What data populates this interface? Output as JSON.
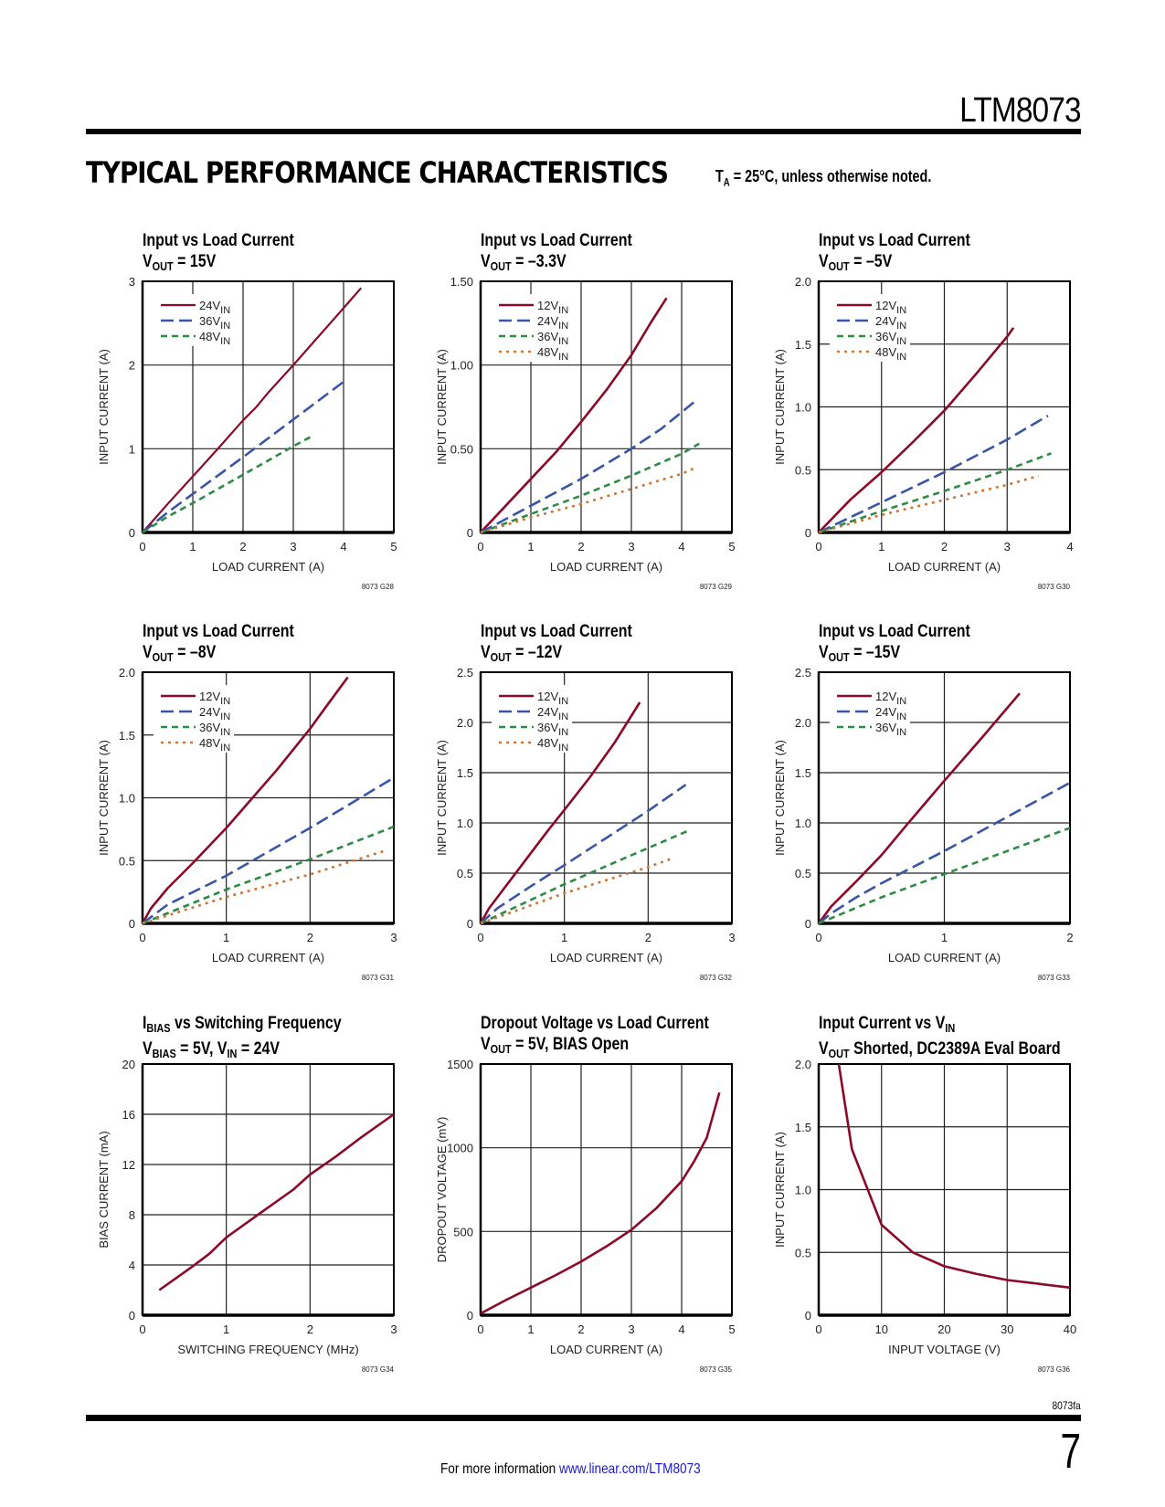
{
  "header": {
    "part_number": "LTM8073",
    "section_title": "TYPICAL PERFORMANCE CHARACTERISTICS",
    "conditions_prefix": "T",
    "conditions_sub": "A",
    "conditions_suffix": " = 25°C, unless otherwise noted."
  },
  "footer": {
    "doc_code": "8073fa",
    "page_number": "7",
    "more_info_label": "For more information ",
    "more_info_link": "www.linear.com/LTM8073"
  },
  "colors": {
    "red": "#8b0a2a",
    "blue": "#3a55a4",
    "green": "#2e8b46",
    "orange": "#c8783a"
  },
  "chart_data": [
    {
      "id": "G28",
      "type": "line",
      "title_line1": [
        {
          "t": "Input vs Load Current"
        }
      ],
      "title_line2": [
        {
          "t": "V"
        },
        {
          "s": "OUT"
        },
        {
          "t": " = 15V"
        }
      ],
      "xlabel": "LOAD CURRENT (A)",
      "ylabel": "INPUT CURRENT (A)",
      "xlim": [
        0,
        5
      ],
      "ylim": [
        0,
        3
      ],
      "xticks": [
        0,
        1,
        2,
        3,
        4,
        5
      ],
      "xtick_labels": [
        "0",
        "1",
        "2",
        "3",
        "4",
        "5"
      ],
      "yticks": [
        0,
        1,
        2,
        3
      ],
      "ytick_labels": [
        "0",
        "1",
        "2",
        "3"
      ],
      "code": "8073 G28",
      "legend": "top-left",
      "series": [
        {
          "name": "24V",
          "sub": "IN",
          "style": "solid-thin",
          "color": "red",
          "x": [
            0,
            0.5,
            1,
            1.5,
            2,
            2.25,
            2.5,
            3,
            3.5,
            4,
            4.35
          ],
          "y": [
            0,
            0.34,
            0.67,
            1.0,
            1.34,
            1.49,
            1.67,
            2.0,
            2.34,
            2.68,
            2.92
          ]
        },
        {
          "name": "36V",
          "sub": "IN",
          "style": "longdash",
          "color": "blue",
          "x": [
            0,
            0.5,
            1,
            2,
            3,
            4
          ],
          "y": [
            0,
            0.24,
            0.46,
            0.9,
            1.35,
            1.8
          ]
        },
        {
          "name": "48V",
          "sub": "IN",
          "style": "dash",
          "color": "green",
          "x": [
            0,
            0.5,
            1,
            2,
            3,
            3.4
          ],
          "y": [
            0,
            0.19,
            0.35,
            0.69,
            1.03,
            1.16
          ]
        }
      ]
    },
    {
      "id": "G29",
      "type": "line",
      "title_line1": [
        {
          "t": "Input vs Load Current"
        }
      ],
      "title_line2": [
        {
          "t": "V"
        },
        {
          "s": "OUT"
        },
        {
          "t": " = –3.3V"
        }
      ],
      "xlabel": "LOAD CURRENT (A)",
      "ylabel": "INPUT CURRENT (A)",
      "xlim": [
        0,
        5
      ],
      "ylim": [
        0,
        1.5
      ],
      "xticks": [
        0,
        1,
        2,
        3,
        4,
        5
      ],
      "xtick_labels": [
        "0",
        "1",
        "2",
        "3",
        "4",
        "5"
      ],
      "yticks": [
        0,
        0.5,
        1.0,
        1.5
      ],
      "ytick_labels": [
        "0",
        "0.50",
        "1.00",
        "1.50"
      ],
      "code": "8073 G29",
      "legend": "top-left",
      "series": [
        {
          "name": "12V",
          "sub": "IN",
          "style": "solid",
          "color": "red",
          "x": [
            0,
            0.5,
            1,
            1.5,
            2,
            2.5,
            3,
            3.4,
            3.7
          ],
          "y": [
            0,
            0.16,
            0.32,
            0.48,
            0.66,
            0.85,
            1.06,
            1.26,
            1.4
          ]
        },
        {
          "name": "24V",
          "sub": "IN",
          "style": "longdash",
          "color": "blue",
          "x": [
            0,
            1,
            2,
            3,
            3.6,
            4.25
          ],
          "y": [
            0,
            0.16,
            0.32,
            0.5,
            0.62,
            0.78
          ]
        },
        {
          "name": "36V",
          "sub": "IN",
          "style": "dash",
          "color": "green",
          "x": [
            0,
            1,
            2,
            3,
            4,
            4.35
          ],
          "y": [
            0,
            0.11,
            0.22,
            0.34,
            0.47,
            0.53
          ]
        },
        {
          "name": "48V",
          "sub": "IN",
          "style": "dot",
          "color": "orange",
          "x": [
            0,
            1,
            2,
            3,
            4,
            4.3
          ],
          "y": [
            0,
            0.09,
            0.17,
            0.26,
            0.35,
            0.39
          ]
        }
      ]
    },
    {
      "id": "G30",
      "type": "line",
      "title_line1": [
        {
          "t": "Input vs Load Current"
        }
      ],
      "title_line2": [
        {
          "t": "V"
        },
        {
          "s": "OUT"
        },
        {
          "t": " = –5V"
        }
      ],
      "xlabel": "LOAD CURRENT (A)",
      "ylabel": "INPUT CURRENT (A)",
      "xlim": [
        0,
        4
      ],
      "ylim": [
        0,
        2.0
      ],
      "xticks": [
        0,
        1,
        2,
        3,
        4
      ],
      "xtick_labels": [
        "0",
        "1",
        "2",
        "3",
        "4"
      ],
      "yticks": [
        0,
        0.5,
        1.0,
        1.5,
        2.0
      ],
      "ytick_labels": [
        "0",
        "0.5",
        "1.0",
        "1.5",
        "2.0"
      ],
      "code": "8073 G30",
      "legend": "top-left",
      "series": [
        {
          "name": "12V",
          "sub": "IN",
          "style": "solid",
          "color": "red",
          "x": [
            0,
            0.5,
            1,
            1.5,
            2,
            2.5,
            3,
            3.1
          ],
          "y": [
            0,
            0.26,
            0.48,
            0.72,
            0.97,
            1.26,
            1.56,
            1.63
          ]
        },
        {
          "name": "24V",
          "sub": "IN",
          "style": "longdash",
          "color": "blue",
          "x": [
            0,
            1,
            2,
            3,
            3.65
          ],
          "y": [
            0,
            0.24,
            0.48,
            0.74,
            0.93
          ]
        },
        {
          "name": "36V",
          "sub": "IN",
          "style": "dash",
          "color": "green",
          "x": [
            0,
            1,
            2,
            3,
            3.7
          ],
          "y": [
            0,
            0.17,
            0.33,
            0.5,
            0.63
          ]
        },
        {
          "name": "48V",
          "sub": "IN",
          "style": "dot",
          "color": "orange",
          "x": [
            0,
            1,
            2,
            3,
            3.5
          ],
          "y": [
            0,
            0.14,
            0.26,
            0.38,
            0.45
          ]
        }
      ]
    },
    {
      "id": "G31",
      "type": "line",
      "title_line1": [
        {
          "t": "Input vs Load Current"
        }
      ],
      "title_line2": [
        {
          "t": "V"
        },
        {
          "s": "OUT"
        },
        {
          "t": " = –8V"
        }
      ],
      "xlabel": "LOAD CURRENT (A)",
      "ylabel": "INPUT CURRENT (A)",
      "xlim": [
        0,
        3
      ],
      "ylim": [
        0,
        2.0
      ],
      "xticks": [
        0,
        1,
        2,
        3
      ],
      "xtick_labels": [
        "0",
        "1",
        "2",
        "3"
      ],
      "yticks": [
        0,
        0.5,
        1.0,
        1.5,
        2.0
      ],
      "ytick_labels": [
        "0",
        "0.5",
        "1.0",
        "1.5",
        "2.0"
      ],
      "code": "8073 G31",
      "legend": "top-left",
      "series": [
        {
          "name": "12V",
          "sub": "IN",
          "style": "solid",
          "color": "red",
          "x": [
            0,
            0.1,
            0.3,
            0.6,
            1,
            1.3,
            1.6,
            2,
            2.25,
            2.45
          ],
          "y": [
            0,
            0.12,
            0.28,
            0.48,
            0.76,
            0.99,
            1.22,
            1.55,
            1.78,
            1.96
          ]
        },
        {
          "name": "24V",
          "sub": "IN",
          "style": "longdash",
          "color": "blue",
          "x": [
            0,
            0.3,
            1,
            1.5,
            2,
            2.5,
            3
          ],
          "y": [
            0,
            0.15,
            0.38,
            0.57,
            0.76,
            0.96,
            1.16
          ]
        },
        {
          "name": "36V",
          "sub": "IN",
          "style": "dash",
          "color": "green",
          "x": [
            0,
            1,
            2,
            3
          ],
          "y": [
            0,
            0.27,
            0.51,
            0.77
          ]
        },
        {
          "name": "48V",
          "sub": "IN",
          "style": "dot",
          "color": "orange",
          "x": [
            0,
            1,
            2,
            2.9
          ],
          "y": [
            0,
            0.21,
            0.39,
            0.58
          ]
        }
      ]
    },
    {
      "id": "G32",
      "type": "line",
      "title_line1": [
        {
          "t": "Input vs Load Current"
        }
      ],
      "title_line2": [
        {
          "t": "V"
        },
        {
          "s": "OUT"
        },
        {
          "t": " = –12V"
        }
      ],
      "xlabel": "LOAD CURRENT (A)",
      "ylabel": "INPUT CURRENT (A)",
      "xlim": [
        0,
        3
      ],
      "ylim": [
        0,
        2.5
      ],
      "xticks": [
        0,
        1,
        2,
        3
      ],
      "xtick_labels": [
        "0",
        "1",
        "2",
        "3"
      ],
      "yticks": [
        0,
        0.5,
        1.0,
        1.5,
        2.0,
        2.5
      ],
      "ytick_labels": [
        "0",
        "0.5",
        "1.0",
        "1.5",
        "2.0",
        "2.5"
      ],
      "code": "8073 G32",
      "legend": "top-left",
      "series": [
        {
          "name": "12V",
          "sub": "IN",
          "style": "solid",
          "color": "red",
          "x": [
            0,
            0.1,
            0.4,
            0.8,
            1,
            1.3,
            1.6,
            1.9
          ],
          "y": [
            0,
            0.15,
            0.48,
            0.92,
            1.13,
            1.45,
            1.8,
            2.2
          ]
        },
        {
          "name": "24V",
          "sub": "IN",
          "style": "longdash",
          "color": "blue",
          "x": [
            0,
            0.2,
            0.6,
            1,
            1.5,
            2,
            2.45
          ],
          "y": [
            0,
            0.15,
            0.37,
            0.58,
            0.85,
            1.12,
            1.38
          ]
        },
        {
          "name": "36V",
          "sub": "IN",
          "style": "dash",
          "color": "green",
          "x": [
            0,
            1,
            2,
            2.5
          ],
          "y": [
            0,
            0.39,
            0.75,
            0.93
          ]
        },
        {
          "name": "48V",
          "sub": "IN",
          "style": "dot",
          "color": "orange",
          "x": [
            0,
            1,
            2,
            2.3
          ],
          "y": [
            0,
            0.3,
            0.56,
            0.65
          ]
        }
      ]
    },
    {
      "id": "G33",
      "type": "line",
      "title_line1": [
        {
          "t": "Input vs Load Current"
        }
      ],
      "title_line2": [
        {
          "t": "V"
        },
        {
          "s": "OUT"
        },
        {
          "t": " = –15V"
        }
      ],
      "xlabel": "LOAD CURRENT (A)",
      "ylabel": "INPUT CURRENT (A)",
      "xlim": [
        0,
        2
      ],
      "ylim": [
        0,
        2.5
      ],
      "xticks": [
        0,
        1,
        2
      ],
      "xtick_labels": [
        "0",
        "1",
        "2"
      ],
      "yticks": [
        0,
        0.5,
        1.0,
        1.5,
        2.0,
        2.5
      ],
      "ytick_labels": [
        "0",
        "0.5",
        "1.0",
        "1.5",
        "2.0",
        "2.5"
      ],
      "code": "8073 G33",
      "legend": "top-left",
      "series": [
        {
          "name": "12V",
          "sub": "IN",
          "style": "solid",
          "color": "red",
          "x": [
            0,
            0.1,
            0.3,
            0.5,
            0.7,
            1,
            1.3,
            1.6
          ],
          "y": [
            0,
            0.17,
            0.42,
            0.68,
            0.98,
            1.42,
            1.85,
            2.29
          ]
        },
        {
          "name": "24V",
          "sub": "IN",
          "style": "longdash",
          "color": "blue",
          "x": [
            0,
            0.1,
            0.3,
            0.5,
            1,
            1.5,
            2
          ],
          "y": [
            0,
            0.1,
            0.26,
            0.4,
            0.72,
            1.06,
            1.4
          ]
        },
        {
          "name": "36V",
          "sub": "IN",
          "style": "dash",
          "color": "green",
          "x": [
            0,
            0.5,
            1,
            1.5,
            2
          ],
          "y": [
            0,
            0.26,
            0.49,
            0.72,
            0.95
          ]
        }
      ]
    },
    {
      "id": "G34",
      "type": "line",
      "title_line1": [
        {
          "t": "I"
        },
        {
          "s": "BIAS"
        },
        {
          "t": " vs Switching Frequency"
        }
      ],
      "title_line2": [
        {
          "t": "V"
        },
        {
          "s": "BIAS"
        },
        {
          "t": " = 5V, V"
        },
        {
          "s": "IN"
        },
        {
          "t": " = 24V"
        }
      ],
      "xlabel": "SWITCHING FREQUENCY (MHz)",
      "ylabel": "BIAS CURRENT (mA)",
      "xlim": [
        0,
        3
      ],
      "ylim": [
        0,
        20
      ],
      "xticks": [
        0,
        1,
        2,
        3
      ],
      "xtick_labels": [
        "0",
        "1",
        "2",
        "3"
      ],
      "yticks": [
        0,
        4,
        8,
        12,
        16,
        20
      ],
      "ytick_labels": [
        "0",
        "4",
        "8",
        "12",
        "16",
        "20"
      ],
      "code": "8073 G34",
      "legend": "none",
      "series": [
        {
          "name": "I_BIAS",
          "style": "solid",
          "color": "red",
          "x": [
            0.2,
            0.6,
            0.8,
            1,
            1.4,
            1.8,
            2,
            2.3,
            2.6,
            3
          ],
          "y": [
            2,
            3.9,
            4.9,
            6.2,
            8.1,
            10,
            11.2,
            12.6,
            14.1,
            16
          ]
        }
      ]
    },
    {
      "id": "G35",
      "type": "line",
      "title_line1": [
        {
          "t": "Dropout Voltage vs Load Current"
        }
      ],
      "title_line2": [
        {
          "t": "V"
        },
        {
          "s": "OUT"
        },
        {
          "t": " = 5V, BIAS Open"
        }
      ],
      "xlabel": "LOAD CURRENT (A)",
      "ylabel": "DROPOUT VOLTAGE (mV)",
      "xlim": [
        0,
        5
      ],
      "ylim": [
        0,
        1500
      ],
      "xticks": [
        0,
        1,
        2,
        3,
        4,
        5
      ],
      "xtick_labels": [
        "0",
        "1",
        "2",
        "3",
        "4",
        "5"
      ],
      "yticks": [
        0,
        500,
        1000,
        1500
      ],
      "ytick_labels": [
        "0",
        "500",
        "1000",
        "1500"
      ],
      "code": "8073 G35",
      "legend": "none",
      "series": [
        {
          "name": "Dropout",
          "style": "solid",
          "color": "red",
          "x": [
            0,
            0.5,
            1,
            1.5,
            2,
            2.5,
            3,
            3.5,
            4,
            4.25,
            4.5,
            4.75
          ],
          "y": [
            10,
            90,
            165,
            240,
            320,
            410,
            510,
            640,
            800,
            920,
            1060,
            1330
          ]
        }
      ]
    },
    {
      "id": "G36",
      "type": "line",
      "title_line1": [
        {
          "t": "Input Current vs V"
        },
        {
          "s": "IN"
        }
      ],
      "title_line2": [
        {
          "t": "V"
        },
        {
          "s": "OUT"
        },
        {
          "t": " Shorted, DC2389A Eval Board"
        }
      ],
      "xlabel": "INPUT VOLTAGE  (V)",
      "ylabel": "INPUT CURRENT (A)",
      "xlim": [
        0,
        40
      ],
      "ylim": [
        0,
        2.0
      ],
      "xticks": [
        0,
        10,
        20,
        30,
        40
      ],
      "xtick_labels": [
        "0",
        "10",
        "20",
        "30",
        "40"
      ],
      "yticks": [
        0,
        0.5,
        1.0,
        1.5,
        2.0
      ],
      "ytick_labels": [
        "0",
        "0.5",
        "1.0",
        "1.5",
        "2.0"
      ],
      "code": "8073 G36",
      "legend": "none",
      "series": [
        {
          "name": "Input Current",
          "style": "solid",
          "color": "red",
          "x": [
            3.2,
            5.3,
            10,
            15,
            20,
            25,
            30,
            35,
            40
          ],
          "y": [
            2.0,
            1.32,
            0.72,
            0.5,
            0.39,
            0.33,
            0.28,
            0.25,
            0.22
          ]
        }
      ]
    }
  ]
}
